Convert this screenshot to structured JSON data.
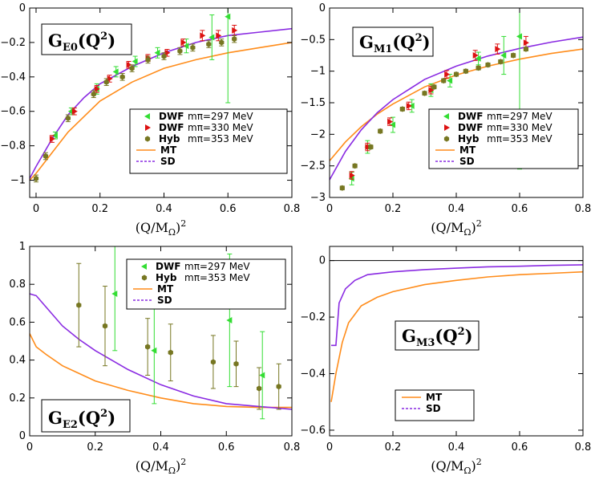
{
  "colors": {
    "dwf297": "#33dd33",
    "dwf330": "#dd1111",
    "hyb": "#777722",
    "mt": "#ff8c1a",
    "sd": "#8a2be2",
    "zero_line": "#000000"
  },
  "chart_data": [
    {
      "id": "ge0",
      "type": "scatter",
      "title_main": "G",
      "title_sub": "E0",
      "title_arg": "(Q",
      "title_pow": "2",
      "title_close": ")",
      "xlabel_main": "(Q/M",
      "xlabel_sub": "Ω",
      "xlabel_close": ")",
      "xlabel_pow": "2",
      "xlim": [
        -0.02,
        0.8
      ],
      "ylim": [
        -1.1,
        0
      ],
      "xticks": [
        0,
        0.2,
        0.4,
        0.6,
        0.8
      ],
      "xtick_labels": [
        "0",
        "0.2",
        "0.4",
        "0.6",
        "0.8"
      ],
      "yticks": [
        -1,
        -0.8,
        -0.6,
        -0.4,
        -0.2,
        0
      ],
      "ytick_labels": [
        "−1",
        "−0.8",
        "−0.6",
        "−0.4",
        "−0.2",
        "0"
      ],
      "legend_position": "right-middle",
      "series": [
        {
          "name": "DWF",
          "mass": "mπ=297 MeV",
          "color_key": "dwf297",
          "marker": "tri-left",
          "points": [
            [
              0.06,
              -0.74,
              0.02
            ],
            [
              0.11,
              -0.6,
              0.02
            ],
            [
              0.19,
              -0.47,
              0.03
            ],
            [
              0.25,
              -0.37,
              0.03
            ],
            [
              0.31,
              -0.31,
              0.03
            ],
            [
              0.38,
              -0.26,
              0.03
            ],
            [
              0.47,
              -0.22,
              0.04
            ],
            [
              0.55,
              -0.17,
              0.13
            ],
            [
              0.6,
              -0.05,
              0.5
            ]
          ]
        },
        {
          "name": "DWF",
          "mass": "mπ=330 MeV",
          "color_key": "dwf330",
          "marker": "tri-right",
          "points": [
            [
              0.05,
              -0.76,
              0.02
            ],
            [
              0.12,
              -0.6,
              0.02
            ],
            [
              0.19,
              -0.47,
              0.02
            ],
            [
              0.23,
              -0.41,
              0.02
            ],
            [
              0.29,
              -0.33,
              0.02
            ],
            [
              0.35,
              -0.29,
              0.02
            ],
            [
              0.41,
              -0.26,
              0.02
            ],
            [
              0.46,
              -0.2,
              0.02
            ],
            [
              0.52,
              -0.16,
              0.03
            ],
            [
              0.57,
              -0.16,
              0.03
            ],
            [
              0.62,
              -0.13,
              0.03
            ]
          ]
        },
        {
          "name": "Hyb",
          "mass": "mπ=353 MeV",
          "color_key": "hyb",
          "marker": "hex",
          "points": [
            [
              0.0,
              -0.99,
              0.02
            ],
            [
              0.03,
              -0.86,
              0.02
            ],
            [
              0.1,
              -0.64,
              0.02
            ],
            [
              0.18,
              -0.5,
              0.02
            ],
            [
              0.22,
              -0.43,
              0.02
            ],
            [
              0.27,
              -0.4,
              0.02
            ],
            [
              0.3,
              -0.35,
              0.02
            ],
            [
              0.35,
              -0.3,
              0.02
            ],
            [
              0.4,
              -0.28,
              0.02
            ],
            [
              0.45,
              -0.25,
              0.02
            ],
            [
              0.49,
              -0.23,
              0.02
            ],
            [
              0.54,
              -0.21,
              0.02
            ],
            [
              0.58,
              -0.2,
              0.02
            ],
            [
              0.62,
              -0.18,
              0.02
            ]
          ]
        }
      ],
      "lines": [
        {
          "name": "MT",
          "color_key": "mt",
          "x": [
            -0.02,
            0,
            0.05,
            0.1,
            0.15,
            0.2,
            0.3,
            0.4,
            0.5,
            0.6,
            0.7,
            0.8
          ],
          "y": [
            -1.0,
            -0.96,
            -0.84,
            -0.72,
            -0.63,
            -0.54,
            -0.43,
            -0.35,
            -0.3,
            -0.26,
            -0.23,
            -0.2
          ]
        },
        {
          "name": "SD",
          "color_key": "sd",
          "x": [
            -0.02,
            0,
            0.05,
            0.1,
            0.15,
            0.2,
            0.3,
            0.4,
            0.5,
            0.6,
            0.7,
            0.8
          ],
          "y": [
            -0.99,
            -0.92,
            -0.76,
            -0.62,
            -0.52,
            -0.44,
            -0.34,
            -0.26,
            -0.2,
            -0.16,
            -0.14,
            -0.12
          ]
        }
      ]
    },
    {
      "id": "gm1",
      "type": "scatter",
      "title_main": "G",
      "title_sub": "M1",
      "title_arg": "(Q",
      "title_pow": "2",
      "title_close": ")",
      "xlabel_main": "(Q/M",
      "xlabel_sub": "Ω",
      "xlabel_close": ")",
      "xlabel_pow": "2",
      "xlim": [
        0,
        0.8
      ],
      "ylim": [
        -3,
        0
      ],
      "xticks": [
        0,
        0.2,
        0.4,
        0.6,
        0.8
      ],
      "xtick_labels": [
        "0",
        "0.2",
        "0.4",
        "0.6",
        "0.8"
      ],
      "yticks": [
        -3,
        -2.5,
        -2,
        -1.5,
        -1,
        -0.5,
        0
      ],
      "ytick_labels": [
        "−3",
        "−2.5",
        "−2",
        "−1.5",
        "−1",
        "−0.5",
        "0"
      ],
      "legend_position": "right-middle",
      "series": [
        {
          "name": "DWF",
          "mass": "mπ=297 MeV",
          "color_key": "dwf297",
          "marker": "tri-left",
          "points": [
            [
              0.07,
              -2.7,
              0.1
            ],
            [
              0.12,
              -2.2,
              0.1
            ],
            [
              0.2,
              -1.85,
              0.12
            ],
            [
              0.26,
              -1.55,
              0.1
            ],
            [
              0.32,
              -1.3,
              0.1
            ],
            [
              0.38,
              -1.15,
              0.1
            ],
            [
              0.47,
              -0.8,
              0.1
            ],
            [
              0.55,
              -0.75,
              0.3
            ],
            [
              0.6,
              -0.45,
              2.1
            ]
          ]
        },
        {
          "name": "DWF",
          "mass": "mπ=330 MeV",
          "color_key": "dwf330",
          "marker": "tri-right",
          "points": [
            [
              0.07,
              -2.65,
              0.06
            ],
            [
              0.12,
              -2.2,
              0.06
            ],
            [
              0.19,
              -1.8,
              0.06
            ],
            [
              0.25,
              -1.55,
              0.06
            ],
            [
              0.32,
              -1.3,
              0.06
            ],
            [
              0.37,
              -1.05,
              0.06
            ],
            [
              0.46,
              -0.75,
              0.08
            ],
            [
              0.53,
              -0.65,
              0.08
            ],
            [
              0.62,
              -0.55,
              0.1
            ]
          ]
        },
        {
          "name": "Hyb",
          "mass": "mπ=353 MeV",
          "color_key": "hyb",
          "marker": "hex",
          "points": [
            [
              0.04,
              -2.85,
              0.03
            ],
            [
              0.08,
              -2.5,
              0.03
            ],
            [
              0.13,
              -2.2,
              0.03
            ],
            [
              0.16,
              -1.95,
              0.03
            ],
            [
              0.23,
              -1.6,
              0.03
            ],
            [
              0.3,
              -1.35,
              0.03
            ],
            [
              0.33,
              -1.25,
              0.03
            ],
            [
              0.36,
              -1.15,
              0.03
            ],
            [
              0.4,
              -1.05,
              0.03
            ],
            [
              0.43,
              -1.0,
              0.03
            ],
            [
              0.47,
              -0.95,
              0.03
            ],
            [
              0.5,
              -0.9,
              0.03
            ],
            [
              0.54,
              -0.85,
              0.03
            ],
            [
              0.58,
              -0.75,
              0.03
            ],
            [
              0.62,
              -0.65,
              0.03
            ]
          ]
        }
      ],
      "lines": [
        {
          "name": "MT",
          "color_key": "mt",
          "x": [
            0,
            0.05,
            0.1,
            0.15,
            0.2,
            0.3,
            0.4,
            0.5,
            0.6,
            0.7,
            0.8
          ],
          "y": [
            -2.42,
            -2.12,
            -1.88,
            -1.68,
            -1.52,
            -1.25,
            -1.06,
            -0.92,
            -0.81,
            -0.72,
            -0.65
          ]
        },
        {
          "name": "SD",
          "color_key": "sd",
          "x": [
            0,
            0.05,
            0.1,
            0.15,
            0.2,
            0.3,
            0.4,
            0.5,
            0.6,
            0.7,
            0.8
          ],
          "y": [
            -2.72,
            -2.27,
            -1.93,
            -1.66,
            -1.45,
            -1.13,
            -0.92,
            -0.76,
            -0.64,
            -0.54,
            -0.46
          ]
        }
      ]
    },
    {
      "id": "ge2",
      "type": "scatter",
      "title_main": "G",
      "title_sub": "E2",
      "title_arg": "(Q",
      "title_pow": "2",
      "title_close": ")",
      "xlabel_main": "(Q/M",
      "xlabel_sub": "Ω",
      "xlabel_close": ")",
      "xlabel_pow": "2",
      "xlim": [
        0,
        0.8
      ],
      "ylim": [
        0,
        1
      ],
      "xticks": [
        0,
        0.2,
        0.4,
        0.6,
        0.8
      ],
      "xtick_labels": [
        "0",
        "0.2",
        "0.4",
        "0.6",
        "0.8"
      ],
      "yticks": [
        0,
        0.2,
        0.4,
        0.6,
        0.8,
        1
      ],
      "ytick_labels": [
        "0",
        "0.2",
        "0.4",
        "0.6",
        "0.8",
        "1"
      ],
      "legend_position": "top-right",
      "series": [
        {
          "name": "DWF",
          "mass": "mπ=297 MeV",
          "color_key": "dwf297",
          "marker": "tri-left",
          "points": [
            [
              0.26,
              0.75,
              0.3
            ],
            [
              0.38,
              0.45,
              0.28
            ],
            [
              0.61,
              0.61,
              0.35
            ],
            [
              0.71,
              0.32,
              0.23
            ]
          ]
        },
        {
          "name": "Hyb",
          "mass": "mπ=353 MeV",
          "color_key": "hyb",
          "marker": "hex",
          "points": [
            [
              0.15,
              0.69,
              0.22
            ],
            [
              0.23,
              0.58,
              0.21
            ],
            [
              0.36,
              0.47,
              0.15
            ],
            [
              0.43,
              0.44,
              0.15
            ],
            [
              0.56,
              0.39,
              0.14
            ],
            [
              0.63,
              0.38,
              0.12
            ],
            [
              0.7,
              0.25,
              0.11
            ],
            [
              0.76,
              0.26,
              0.12
            ]
          ]
        }
      ],
      "lines": [
        {
          "name": "MT",
          "color_key": "mt",
          "x": [
            0,
            0.02,
            0.05,
            0.1,
            0.15,
            0.2,
            0.3,
            0.4,
            0.5,
            0.6,
            0.7,
            0.8
          ],
          "y": [
            0.54,
            0.47,
            0.43,
            0.37,
            0.33,
            0.29,
            0.24,
            0.2,
            0.17,
            0.155,
            0.15,
            0.15
          ]
        },
        {
          "name": "SD",
          "color_key": "sd",
          "x": [
            0,
            0.02,
            0.05,
            0.1,
            0.15,
            0.2,
            0.3,
            0.4,
            0.5,
            0.6,
            0.7,
            0.8
          ],
          "y": [
            0.75,
            0.74,
            0.68,
            0.58,
            0.51,
            0.45,
            0.35,
            0.27,
            0.21,
            0.17,
            0.155,
            0.14
          ]
        }
      ]
    },
    {
      "id": "gm3",
      "type": "line",
      "title_main": "G",
      "title_sub": "M3",
      "title_arg": "(Q",
      "title_pow": "2",
      "title_close": ")",
      "xlabel_main": "(Q/M",
      "xlabel_sub": "Ω",
      "xlabel_close": ")",
      "xlabel_pow": "2",
      "xlim": [
        0,
        0.8
      ],
      "ylim": [
        -0.62,
        0.05
      ],
      "xticks": [
        0,
        0.2,
        0.4,
        0.6,
        0.8
      ],
      "xtick_labels": [
        "0",
        "0.2",
        "0.4",
        "0.6",
        "0.8"
      ],
      "yticks": [
        -0.6,
        -0.4,
        -0.2,
        0
      ],
      "ytick_labels": [
        "−0.6",
        "−0.4",
        "−0.2",
        "0"
      ],
      "legend_position": "bottom-center",
      "series": [],
      "lines": [
        {
          "name": "MT",
          "color_key": "mt",
          "x": [
            0.005,
            0.02,
            0.04,
            0.06,
            0.1,
            0.15,
            0.2,
            0.3,
            0.4,
            0.5,
            0.6,
            0.7,
            0.8
          ],
          "y": [
            -0.5,
            -0.4,
            -0.29,
            -0.22,
            -0.16,
            -0.13,
            -0.11,
            -0.085,
            -0.07,
            -0.058,
            -0.05,
            -0.045,
            -0.04
          ]
        },
        {
          "name": "SD",
          "color_key": "sd",
          "x": [
            0.005,
            0.02,
            0.03,
            0.05,
            0.08,
            0.12,
            0.2,
            0.3,
            0.4,
            0.5,
            0.6,
            0.7,
            0.8
          ],
          "y": [
            -0.3,
            -0.3,
            -0.15,
            -0.1,
            -0.07,
            -0.05,
            -0.04,
            -0.032,
            -0.027,
            -0.022,
            -0.02,
            -0.017,
            -0.015
          ]
        }
      ],
      "zero_line": true
    }
  ],
  "legend_labels": {
    "mt": "MT",
    "sd": "SD"
  }
}
